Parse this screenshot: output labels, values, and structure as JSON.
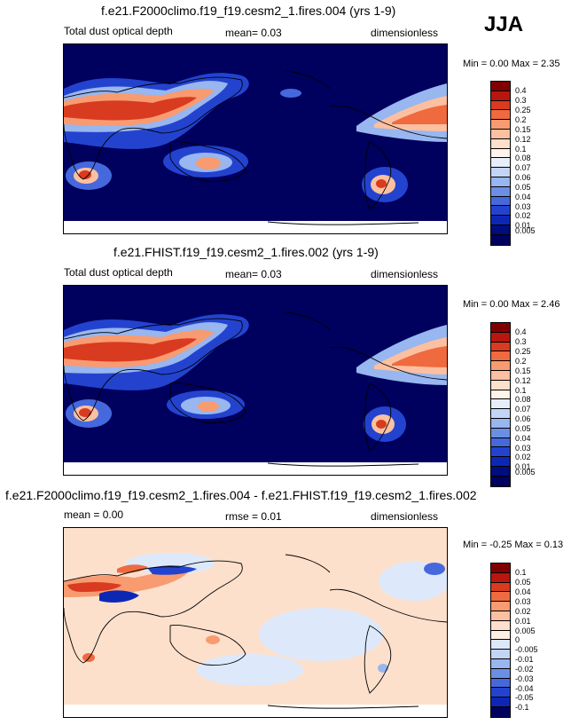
{
  "season": "JJA",
  "panels": [
    {
      "title": "f.e21.F2000climo.f19_f19.cesm2_1.fires.004 (yrs 1-9)",
      "field": "Total dust optical depth",
      "stat": "mean=  0.03",
      "units": "dimensionless",
      "minmax": "Min =  0.00 Max =  2.35",
      "colorbar": {
        "labels": [
          "0.4",
          "0.3",
          "0.25",
          "0.2",
          "0.15",
          "0.12",
          "0.1",
          "0.08",
          "0.07",
          "0.06",
          "0.05",
          "0.04",
          "0.03",
          "0.02",
          "0.01",
          "0.005"
        ],
        "colors": [
          "#800000",
          "#b8160f",
          "#d93b20",
          "#ef6a3f",
          "#f89b71",
          "#fcc0a0",
          "#fde0cc",
          "#fff3ea",
          "#e6eefb",
          "#c2d5f6",
          "#98b6ef",
          "#6c8fe6",
          "#4569dc",
          "#2343cf",
          "#0d27b5",
          "#000d7f",
          "#00005e"
        ]
      }
    },
    {
      "title": "f.e21.FHIST.f19_f19.cesm2_1.fires.002 (yrs 1-9)",
      "field": "Total dust optical depth",
      "stat": "mean=  0.03",
      "units": "dimensionless",
      "minmax": "Min =  0.00 Max =  2.46",
      "colorbar": {
        "labels": [
          "0.4",
          "0.3",
          "0.25",
          "0.2",
          "0.15",
          "0.12",
          "0.1",
          "0.08",
          "0.07",
          "0.06",
          "0.05",
          "0.04",
          "0.03",
          "0.02",
          "0.01",
          "0.005"
        ],
        "colors": [
          "#800000",
          "#b8160f",
          "#d93b20",
          "#ef6a3f",
          "#f89b71",
          "#fcc0a0",
          "#fde0cc",
          "#fff3ea",
          "#e6eefb",
          "#c2d5f6",
          "#98b6ef",
          "#6c8fe6",
          "#4569dc",
          "#2343cf",
          "#0d27b5",
          "#000d7f",
          "#00005e"
        ]
      }
    },
    {
      "title": "f.e21.F2000climo.f19_f19.cesm2_1.fires.004 - f.e21.FHIST.f19_f19.cesm2_1.fires.002",
      "field": "mean =  0.00",
      "stat": "rmse =  0.01",
      "units": "dimensionless",
      "minmax": "Min = -0.25 Max =  0.13",
      "colorbar": {
        "labels": [
          "0.1",
          "0.05",
          "0.04",
          "0.03",
          "0.02",
          "0.01",
          "0.005",
          "0",
          "-0.005",
          "-0.01",
          "-0.02",
          "-0.03",
          "-0.04",
          "-0.05",
          "-0.1"
        ],
        "colors": [
          "#800000",
          "#b8160f",
          "#d93b20",
          "#ef6a3f",
          "#f89b71",
          "#fcc0a0",
          "#fde0cc",
          "#fff0e4",
          "#dde9fa",
          "#c2d5f6",
          "#98b6ef",
          "#6c8fe6",
          "#4569dc",
          "#2343cf",
          "#0d27b5",
          "#00005e"
        ]
      }
    }
  ]
}
